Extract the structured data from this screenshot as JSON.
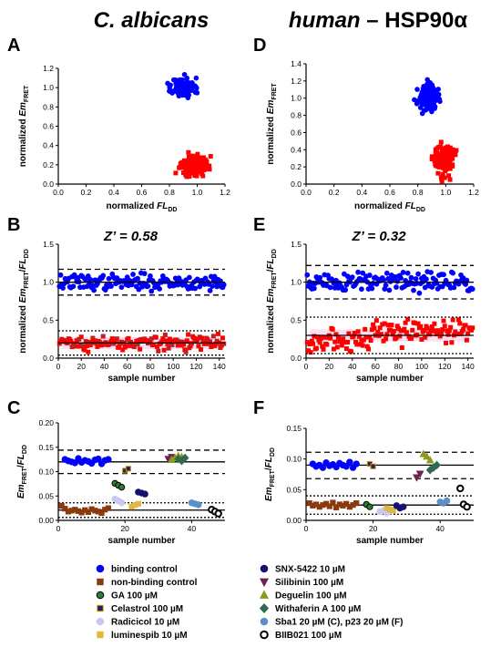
{
  "headers": {
    "left_title": "C. albicans",
    "right_title_italic": "human",
    "right_title_rest": " – HSP90α"
  },
  "chart_data": [
    {
      "panel": "A",
      "type": "scatter",
      "xlabel_main": "normalized ",
      "xlabel_italic": "FL",
      "xlabel_sub": "DD",
      "ylabel_main": "normalized ",
      "ylabel_italic": "Em",
      "ylabel_sub": "FRET",
      "xlim": [
        0.0,
        1.2
      ],
      "ylim": [
        0.0,
        1.2
      ],
      "xticks": [
        "0.0",
        "0.2",
        "0.4",
        "0.6",
        "0.8",
        "1.0",
        "1.2"
      ],
      "yticks": [
        "0.0",
        "0.2",
        "0.4",
        "0.6",
        "0.8",
        "1.0",
        "1.2"
      ],
      "clusters": [
        {
          "name": "binding control",
          "color": "#0000ff",
          "marker": "circle",
          "center": [
            0.9,
            1.0
          ],
          "spread": [
            0.04,
            0.05
          ],
          "count": 144
        },
        {
          "name": "non-binding control",
          "color": "#ff0000",
          "marker": "square",
          "center": [
            0.98,
            0.2
          ],
          "spread": [
            0.05,
            0.05
          ],
          "count": 144
        }
      ]
    },
    {
      "panel": "D",
      "type": "scatter",
      "xlabel_main": "normalized ",
      "xlabel_italic": "FL",
      "xlabel_sub": "DD",
      "ylabel_main": "normalized ",
      "ylabel_italic": "Em",
      "ylabel_sub": "FRET",
      "xlim": [
        0.0,
        1.2
      ],
      "ylim": [
        0.0,
        1.4
      ],
      "xticks": [
        "0.0",
        "0.2",
        "0.4",
        "0.6",
        "0.8",
        "1.0",
        "1.2"
      ],
      "yticks": [
        "0.0",
        "0.2",
        "0.4",
        "0.6",
        "0.8",
        "1.0",
        "1.2",
        "1.4"
      ],
      "clusters": [
        {
          "name": "binding control",
          "color": "#0000ff",
          "marker": "circle",
          "center": [
            0.87,
            1.0
          ],
          "spread": [
            0.035,
            0.07
          ],
          "count": 144
        },
        {
          "name": "non-binding control",
          "color": "#ff0000",
          "marker": "square",
          "center": [
            0.99,
            0.3
          ],
          "spread": [
            0.035,
            0.09
          ],
          "count": 144
        }
      ]
    },
    {
      "panel": "B",
      "type": "scatter",
      "zprime_label": "Z’ = 0.58",
      "xlabel": "sample number",
      "ylabel_main": "normalized ",
      "ylabel_italic": "Em",
      "ylabel_sub": "FRET",
      "ylabel_slash": "/",
      "ylabel_italic2": "FL",
      "ylabel_sub2": "DD",
      "xlim": [
        0,
        145
      ],
      "ylim": [
        0.0,
        1.5
      ],
      "xticks": [
        "0",
        "20",
        "40",
        "60",
        "80",
        "100",
        "120",
        "140"
      ],
      "yticks": [
        "0.0",
        "0.5",
        "1.0",
        "1.5"
      ],
      "lines": {
        "pos_mean": 1.0,
        "pos_band": [
          0.83,
          1.17
        ],
        "neg_mean": 0.2,
        "neg_band": [
          0.04,
          0.36
        ]
      },
      "series": [
        {
          "name": "binding control",
          "color": "#0000ff",
          "marker": "circle",
          "mean": 1.0,
          "sd": 0.05,
          "count": 144
        },
        {
          "name": "non-binding control",
          "color": "#ff0000",
          "marker": "square",
          "mean": 0.2,
          "sd": 0.05,
          "count": 144
        }
      ]
    },
    {
      "panel": "E",
      "type": "scatter",
      "zprime_label": "Z’ = 0.32",
      "xlabel": "sample number",
      "ylabel_main": "normalized ",
      "ylabel_italic": "Em",
      "ylabel_sub": "FRET",
      "ylabel_slash": "/",
      "ylabel_italic2": "FL",
      "ylabel_sub2": "DD",
      "xlim": [
        0,
        145
      ],
      "ylim": [
        0.0,
        1.5
      ],
      "xticks": [
        "0",
        "20",
        "40",
        "60",
        "80",
        "100",
        "120",
        "140"
      ],
      "yticks": [
        "0.0",
        "0.5",
        "1.0",
        "1.5"
      ],
      "lines": {
        "pos_mean": 1.0,
        "pos_band": [
          0.78,
          1.22
        ],
        "neg_mean": 0.3,
        "neg_band": [
          0.06,
          0.54
        ]
      },
      "series": [
        {
          "name": "binding control",
          "color": "#0000ff",
          "marker": "circle",
          "mean": 1.0,
          "sd": 0.07,
          "count": 144
        },
        {
          "name": "non-binding control",
          "color": "#ff0000",
          "marker": "square",
          "mean": 0.3,
          "sd": 0.08,
          "count": 144
        }
      ]
    },
    {
      "panel": "C",
      "type": "scatter",
      "xlabel": "sample number",
      "ylabel_italic": "Em",
      "ylabel_sub": "FRET",
      "ylabel_slash": "/",
      "ylabel_italic2": "FL",
      "ylabel_sub2": "DD",
      "xlim": [
        0,
        50
      ],
      "ylim": [
        0.0,
        0.2
      ],
      "xticks": [
        "0",
        "20",
        "40"
      ],
      "yticks": [
        "0.00",
        "0.05",
        "0.10",
        "0.15",
        "0.20"
      ],
      "lines": {
        "pos_mean": 0.12,
        "pos_band": [
          0.096,
          0.144
        ],
        "neg_mean": 0.021,
        "neg_band": [
          0.006,
          0.036
        ]
      },
      "points": [
        {
          "name": "binding control",
          "x": [
            2,
            3,
            4,
            5,
            6,
            7,
            8,
            9,
            10,
            11,
            12,
            13,
            14,
            15
          ],
          "y": [
            0.125,
            0.122,
            0.12,
            0.118,
            0.127,
            0.119,
            0.123,
            0.121,
            0.117,
            0.124,
            0.126,
            0.116,
            0.123,
            0.125
          ]
        },
        {
          "name": "non-binding control",
          "x": [
            1,
            2,
            3,
            4,
            5,
            6,
            7,
            8,
            9,
            10,
            11,
            12,
            13,
            14,
            15
          ],
          "y": [
            0.03,
            0.024,
            0.018,
            0.02,
            0.022,
            0.019,
            0.016,
            0.021,
            0.017,
            0.023,
            0.02,
            0.018,
            0.015,
            0.022,
            0.025
          ]
        },
        {
          "name": "GA 100 µM",
          "x": [
            17,
            18,
            19
          ],
          "y": [
            0.076,
            0.072,
            0.068
          ]
        },
        {
          "name": "Celastrol 100 µM",
          "x": [
            20,
            21
          ],
          "y": [
            0.102,
            0.106
          ]
        },
        {
          "name": "Radicicol 10 µM",
          "x": [
            17,
            18,
            19
          ],
          "y": [
            0.044,
            0.04,
            0.036
          ]
        },
        {
          "name": "luminespib 10 µM",
          "x": [
            22,
            23,
            24
          ],
          "y": [
            0.028,
            0.031,
            0.034
          ]
        },
        {
          "name": "SNX-5422 10 µM",
          "x": [
            24,
            25,
            26
          ],
          "y": [
            0.058,
            0.056,
            0.054
          ]
        },
        {
          "name": "Silibinin 100 µM",
          "x": [
            33,
            34
          ],
          "y": [
            0.126,
            0.13
          ]
        },
        {
          "name": "Deguelin 100 µM",
          "x": [
            34,
            35,
            36,
            37
          ],
          "y": [
            0.124,
            0.128,
            0.132,
            0.13
          ]
        },
        {
          "name": "Withaferin A 100 µM",
          "x": [
            36,
            37,
            38
          ],
          "y": [
            0.126,
            0.122,
            0.128
          ]
        },
        {
          "name": "Sba1 20 µM (C), p23 20 µM (F)",
          "x": [
            40,
            41,
            42
          ],
          "y": [
            0.036,
            0.034,
            0.032
          ]
        },
        {
          "name": "BIIB021 100 µM",
          "x": [
            46,
            47,
            48
          ],
          "y": [
            0.022,
            0.018,
            0.014
          ]
        }
      ]
    },
    {
      "panel": "F",
      "type": "scatter",
      "xlabel": "sample number",
      "ylabel_italic": "Em",
      "ylabel_sub": "FRET",
      "ylabel_slash": "/",
      "ylabel_italic2": "FL",
      "ylabel_sub2": "DD",
      "xlim": [
        0,
        50
      ],
      "ylim": [
        0.0,
        0.15
      ],
      "xticks": [
        "0",
        "20",
        "40"
      ],
      "yticks": [
        "0.00",
        "0.05",
        "0.10",
        "0.15"
      ],
      "lines": {
        "pos_mean": 0.09,
        "pos_band": [
          0.068,
          0.111
        ],
        "neg_mean": 0.025,
        "neg_band": [
          0.01,
          0.04
        ]
      },
      "points": [
        {
          "name": "binding control",
          "x": [
            2,
            3,
            4,
            5,
            6,
            7,
            8,
            9,
            10,
            11,
            12,
            13,
            14,
            15
          ],
          "y": [
            0.092,
            0.088,
            0.09,
            0.086,
            0.094,
            0.089,
            0.091,
            0.087,
            0.093,
            0.09,
            0.088,
            0.095,
            0.086,
            0.092
          ]
        },
        {
          "name": "non-binding control",
          "x": [
            1,
            2,
            3,
            4,
            5,
            6,
            7,
            8,
            9,
            10,
            11,
            12,
            13,
            14,
            15
          ],
          "y": [
            0.028,
            0.024,
            0.026,
            0.022,
            0.025,
            0.027,
            0.023,
            0.029,
            0.021,
            0.026,
            0.024,
            0.027,
            0.022,
            0.025,
            0.028
          ]
        },
        {
          "name": "GA 100 µM",
          "x": [
            18,
            19
          ],
          "y": [
            0.026,
            0.022
          ]
        },
        {
          "name": "Celastrol 100 µM",
          "x": [
            19,
            20
          ],
          "y": [
            0.092,
            0.088
          ]
        },
        {
          "name": "Radicicol 10 µM",
          "x": [
            22,
            23,
            24,
            25
          ],
          "y": [
            0.014,
            0.016,
            0.012,
            0.015
          ]
        },
        {
          "name": "luminespib 10 µM",
          "x": [
            24,
            25,
            26
          ],
          "y": [
            0.02,
            0.018,
            0.016
          ]
        },
        {
          "name": "SNX-5422 10 µM",
          "x": [
            27,
            28,
            29
          ],
          "y": [
            0.024,
            0.02,
            0.022
          ]
        },
        {
          "name": "Silibinin 100 µM",
          "x": [
            33,
            34
          ],
          "y": [
            0.07,
            0.076
          ]
        },
        {
          "name": "Deguelin 100 µM",
          "x": [
            35,
            36,
            37
          ],
          "y": [
            0.108,
            0.104,
            0.098
          ]
        },
        {
          "name": "Withaferin A 100 µM",
          "x": [
            37,
            38,
            39
          ],
          "y": [
            0.082,
            0.086,
            0.09
          ]
        },
        {
          "name": "Sba1 20 µM (C), p23 20 µM (F)",
          "x": [
            40,
            41,
            42
          ],
          "y": [
            0.03,
            0.028,
            0.032
          ]
        },
        {
          "name": "BIIB021 100 µM",
          "x": [
            46,
            47,
            48
          ],
          "y": [
            0.052,
            0.026,
            0.022
          ]
        }
      ]
    }
  ],
  "legend": {
    "placement": "bottom",
    "items": [
      {
        "label": "binding control",
        "marker": "circle",
        "fill": "#0000ff",
        "stroke": "#0000ff"
      },
      {
        "label": "non-binding control",
        "marker": "square",
        "fill": "#8b3a0f",
        "stroke": "#8b3a0f"
      },
      {
        "label": "GA 100 µM",
        "marker": "circle",
        "fill": "#2e7d32",
        "stroke": "#000000"
      },
      {
        "label": "Celastrol 100 µM",
        "marker": "square",
        "fill": "#2a1a6e",
        "stroke": "#c0a000"
      },
      {
        "label": "Radicicol 10 µM",
        "marker": "circle",
        "fill": "#c8c8f0",
        "stroke": "#c8c8f0"
      },
      {
        "label": "luminespib 10 µM",
        "marker": "square",
        "fill": "#e0b840",
        "stroke": "#e0b840"
      },
      {
        "label": "SNX-5422 10 µM",
        "marker": "circle",
        "fill": "#16106e",
        "stroke": "#16106e"
      },
      {
        "label": "Silibinin 100 µM",
        "marker": "triangle-down",
        "fill": "#6a2450",
        "stroke": "#6a2450"
      },
      {
        "label": "Deguelin 100 µM",
        "marker": "triangle-up",
        "fill": "#8a9a1e",
        "stroke": "#8a9a1e"
      },
      {
        "label": "Withaferin A 100 µM",
        "marker": "diamond",
        "fill": "#2f6a4e",
        "stroke": "#2f6a4e"
      },
      {
        "label": "Sba1 20 µM (C), p23 20 µM (F)",
        "marker": "circle",
        "fill": "#5b8fc8",
        "stroke": "#5b8fc8"
      },
      {
        "label": "BIIB021 100 µM",
        "marker": "circle",
        "fill": "#ffffff",
        "stroke": "#000000",
        "ring": true
      }
    ]
  }
}
